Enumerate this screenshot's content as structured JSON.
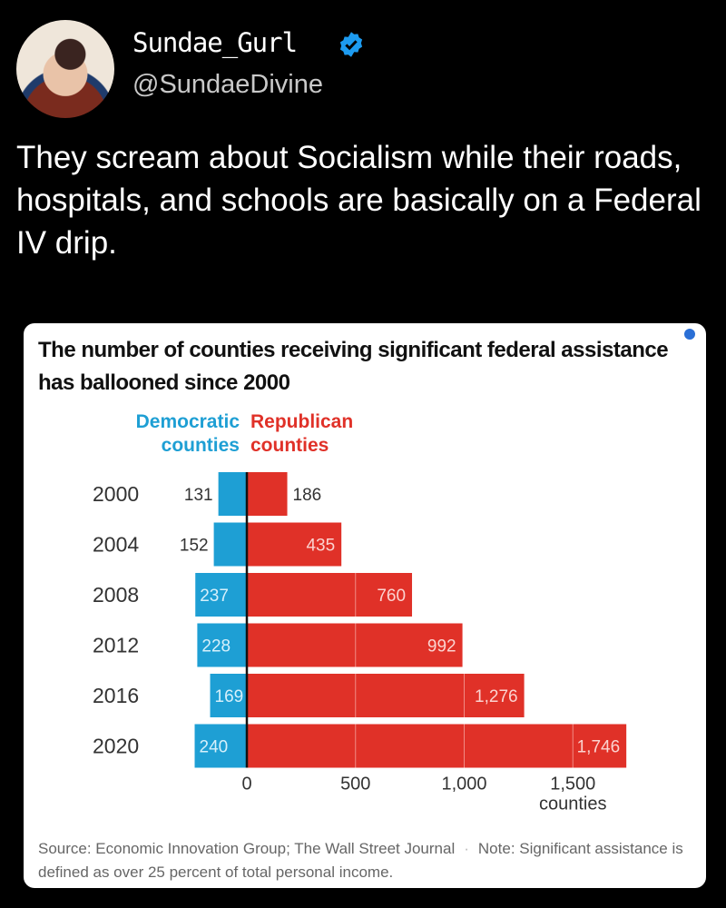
{
  "post": {
    "display_name": "Sundae_Gurl",
    "handle": "@SundaeDivine",
    "verified_icon": "verified-badge-icon",
    "text": "They scream about Socialism while their roads, hospitals, and schools are basically on a Federal IV drip."
  },
  "colors": {
    "democratic": "#1e9fd4",
    "republican": "#e03128"
  },
  "chart_data": {
    "type": "bar",
    "title": "The number of counties receiving significant federal assistance has ballooned since 2000",
    "legend": {
      "democratic": "Democratic counties",
      "republican": "Republican counties",
      "democratic_lines": [
        "Democratic",
        "counties"
      ],
      "republican_lines": [
        "Republican",
        "counties"
      ],
      "placement": "top"
    },
    "categories": [
      "2000",
      "2004",
      "2008",
      "2012",
      "2016",
      "2020"
    ],
    "series": [
      {
        "name": "Democratic counties",
        "values": [
          131,
          152,
          237,
          228,
          169,
          240
        ],
        "labels": [
          "131",
          "152",
          "237",
          "228",
          "169",
          "240"
        ]
      },
      {
        "name": "Republican counties",
        "values": [
          186,
          435,
          760,
          992,
          1276,
          1746
        ],
        "labels": [
          "186",
          "435",
          "760",
          "992",
          "1,276",
          "1,746"
        ]
      }
    ],
    "xticks": [
      0,
      500,
      1000,
      1500
    ],
    "xtick_labels": [
      "0",
      "500",
      "1,000",
      "1,500"
    ],
    "xlabel": "counties",
    "xlim": [
      -240,
      1746
    ],
    "grid": true,
    "source": "Source: Economic Innovation Group; The Wall Street Journal",
    "note": "Note: Significant assistance is defined as over 25 percent of total personal income."
  }
}
